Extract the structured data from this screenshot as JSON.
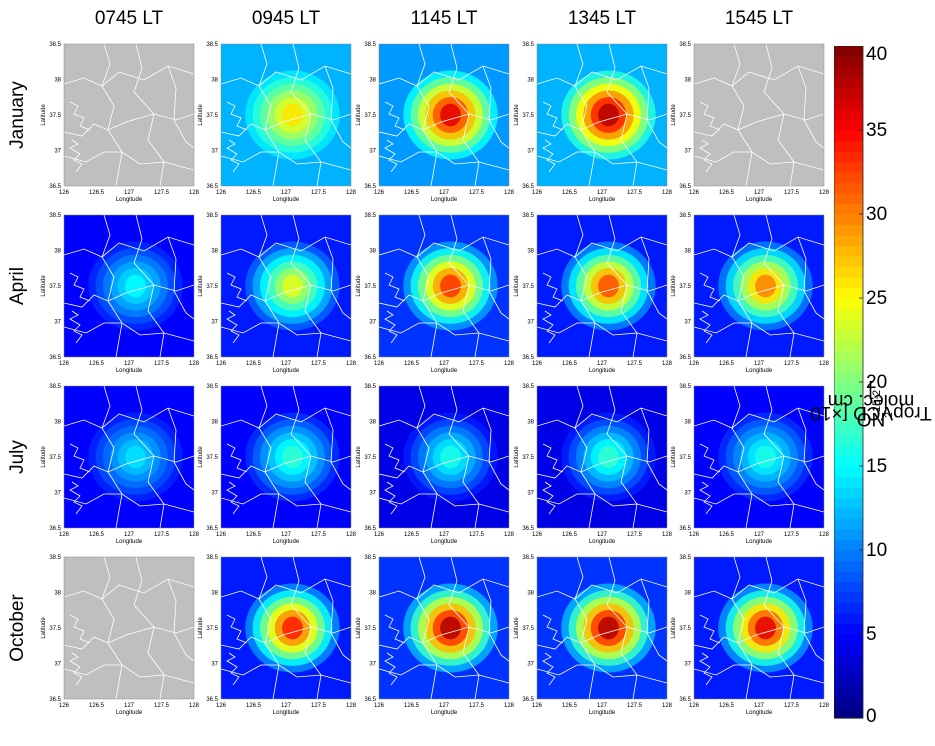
{
  "chart_data": {
    "type": "heatmap",
    "columns": [
      "0745 LT",
      "0945 LT",
      "1145 LT",
      "1345 LT",
      "1545 LT"
    ],
    "rows": [
      "January",
      "April",
      "July",
      "October"
    ],
    "xlabel": "Longitude",
    "ylabel": "Latitude",
    "xticks": [
      "126",
      "126.5",
      "127",
      "127.5",
      "128"
    ],
    "yticks": [
      "36.5",
      "37",
      "37.5",
      "38",
      "38.5"
    ],
    "xlim": [
      126,
      128
    ],
    "ylim": [
      36.5,
      38.5
    ],
    "colorbar": {
      "ticks": [
        "0",
        "5",
        "10",
        "15",
        "20",
        "25",
        "30",
        "35",
        "40"
      ],
      "range": [
        0,
        40
      ],
      "colormap": "jet",
      "label_main": "NO",
      "label_sub": "2",
      "label_rest": " TropVCD [×10",
      "label_sup": "15",
      "label_tail": " molec. cm",
      "label_sup2": "-2",
      "label_end": "]"
    },
    "no_data_color": "#bfbfbf",
    "peak_values": [
      [
        null,
        26,
        36,
        38,
        null
      ],
      [
        15,
        24,
        33,
        32,
        30
      ],
      [
        14,
        17,
        16,
        17,
        16
      ],
      [
        null,
        34,
        38,
        38,
        36
      ]
    ],
    "background_values": [
      [
        null,
        12,
        11,
        12,
        null
      ],
      [
        5,
        6,
        7,
        6,
        6
      ],
      [
        5,
        5,
        4,
        4,
        5
      ],
      [
        null,
        6,
        7,
        7,
        6
      ]
    ]
  }
}
